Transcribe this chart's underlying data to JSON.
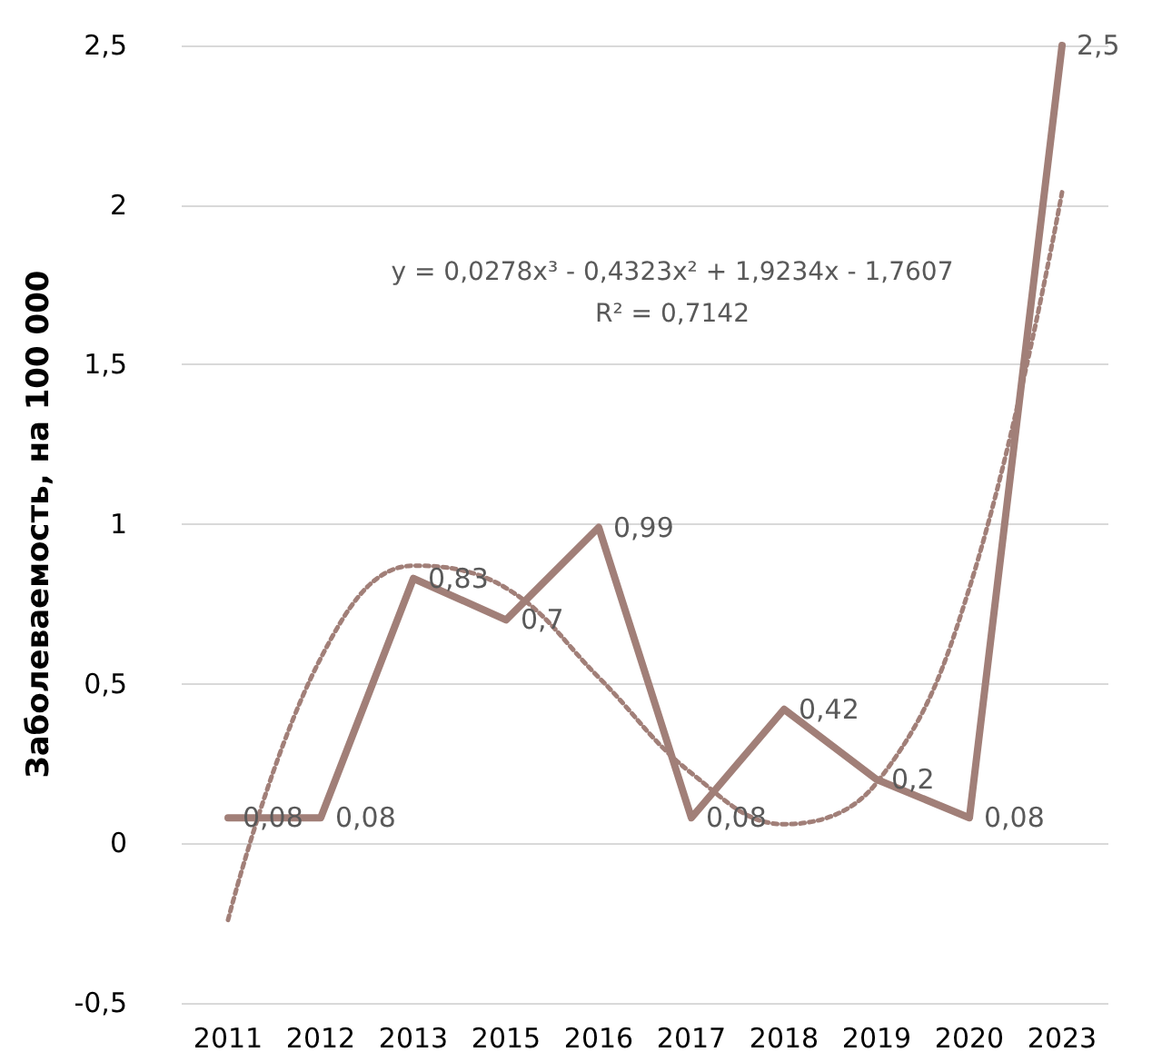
{
  "chart_data": {
    "type": "line",
    "ylabel": "Заболеваемость, на 100 000",
    "categories": [
      "2011",
      "2012",
      "2013",
      "2015",
      "2016",
      "2017",
      "2018",
      "2019",
      "2020",
      "2023"
    ],
    "series": [
      {
        "color": "#a17f78",
        "values": [
          0.08,
          0.08,
          0.83,
          0.7,
          0.99,
          0.08,
          0.42,
          0.2,
          0.08,
          2.5
        ],
        "value_labels": [
          "0,08",
          "0,08",
          "0,83",
          "0,7",
          "0,99",
          "0,08",
          "0,42",
          "0,2",
          "0,08",
          "2,5"
        ]
      },
      {
        "type": "line",
        "color": "#a17f78",
        "line_style": "dotted",
        "values": [
          -0.24,
          0.58,
          0.87,
          0.8,
          0.52,
          0.22,
          0.06,
          0.19,
          0.8,
          2.04
        ]
      }
    ],
    "annotations": [
      "y = 0,0278x³ - 0,4323x² + 1,9234x - 1,7607",
      "R² = 0,7142"
    ],
    "ylim": [
      -0.5,
      2.5
    ],
    "yticks": [
      {
        "value": -0.5,
        "label": "-0,5"
      },
      0,
      {
        "value": 0.5,
        "label": "0,5"
      },
      1,
      {
        "value": 1.5,
        "label": "1,5"
      },
      2,
      {
        "value": 2.5,
        "label": "2,5"
      }
    ],
    "grid": "y",
    "marker": "none",
    "line_style": "solid"
  }
}
